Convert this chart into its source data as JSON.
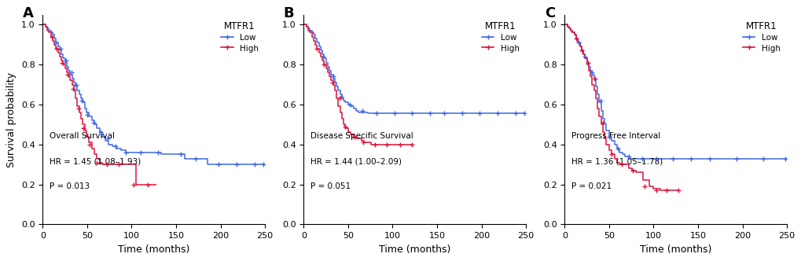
{
  "panels": [
    {
      "label": "A",
      "title": "Overall Survival",
      "hr_text": "HR = 1.45 (1.08–1.93)",
      "p_text": "P = 0.013",
      "blue_times": [
        0,
        3,
        5,
        7,
        9,
        11,
        13,
        15,
        17,
        19,
        21,
        23,
        25,
        27,
        29,
        31,
        33,
        35,
        37,
        39,
        41,
        43,
        45,
        47,
        49,
        52,
        55,
        58,
        61,
        64,
        67,
        70,
        74,
        78,
        83,
        88,
        93,
        98,
        103,
        110,
        118,
        125,
        133,
        142,
        150,
        160,
        170,
        185,
        200,
        220,
        240,
        250
      ],
      "blue_surv": [
        1.0,
        0.99,
        0.98,
        0.97,
        0.96,
        0.95,
        0.93,
        0.91,
        0.89,
        0.87,
        0.85,
        0.83,
        0.81,
        0.79,
        0.77,
        0.75,
        0.73,
        0.71,
        0.69,
        0.67,
        0.65,
        0.63,
        0.61,
        0.58,
        0.56,
        0.54,
        0.52,
        0.5,
        0.48,
        0.46,
        0.44,
        0.42,
        0.4,
        0.39,
        0.38,
        0.37,
        0.36,
        0.36,
        0.36,
        0.36,
        0.36,
        0.36,
        0.35,
        0.35,
        0.35,
        0.33,
        0.33,
        0.3,
        0.3,
        0.3,
        0.3,
        0.3
      ],
      "blue_censor_times": [
        15,
        20,
        26,
        32,
        38,
        44,
        50,
        57,
        65,
        73,
        82,
        93,
        110,
        130,
        155,
        172,
        198,
        218,
        238,
        248
      ],
      "blue_censor_surv": [
        0.91,
        0.88,
        0.82,
        0.76,
        0.7,
        0.62,
        0.55,
        0.51,
        0.46,
        0.43,
        0.39,
        0.36,
        0.36,
        0.36,
        0.35,
        0.33,
        0.3,
        0.3,
        0.3,
        0.3
      ],
      "red_times": [
        0,
        3,
        5,
        7,
        9,
        11,
        13,
        15,
        17,
        19,
        21,
        23,
        25,
        27,
        29,
        31,
        33,
        35,
        37,
        39,
        41,
        43,
        45,
        47,
        49,
        52,
        55,
        58,
        61,
        64,
        67,
        70,
        75,
        80,
        88,
        95,
        105,
        118,
        128
      ],
      "red_surv": [
        1.0,
        0.99,
        0.97,
        0.96,
        0.94,
        0.92,
        0.9,
        0.88,
        0.86,
        0.84,
        0.82,
        0.8,
        0.78,
        0.76,
        0.74,
        0.72,
        0.7,
        0.67,
        0.63,
        0.59,
        0.56,
        0.53,
        0.5,
        0.47,
        0.44,
        0.41,
        0.38,
        0.35,
        0.33,
        0.31,
        0.3,
        0.3,
        0.3,
        0.3,
        0.3,
        0.3,
        0.2,
        0.2,
        0.2
      ],
      "red_censor_times": [
        10,
        16,
        22,
        28,
        34,
        40,
        46,
        53,
        61,
        72,
        85,
        102,
        118
      ],
      "red_censor_surv": [
        0.94,
        0.88,
        0.81,
        0.75,
        0.68,
        0.58,
        0.48,
        0.4,
        0.31,
        0.3,
        0.3,
        0.2,
        0.2
      ],
      "xlim": [
        0,
        250
      ],
      "ylim": [
        0.0,
        1.05
      ],
      "yticks": [
        0.0,
        0.2,
        0.4,
        0.6,
        0.8,
        1.0
      ],
      "xticks": [
        0,
        50,
        100,
        150,
        200,
        250
      ]
    },
    {
      "label": "B",
      "title": "Disease Specific Survival",
      "hr_text": "HR = 1.44 (1.00–2.09)",
      "p_text": "P = 0.051",
      "blue_times": [
        0,
        3,
        5,
        7,
        9,
        11,
        13,
        15,
        17,
        19,
        21,
        23,
        25,
        27,
        29,
        31,
        33,
        35,
        37,
        39,
        41,
        43,
        45,
        47,
        50,
        53,
        56,
        59,
        62,
        65,
        68,
        72,
        76,
        80,
        88,
        95,
        110,
        125,
        140,
        160,
        185,
        210,
        235,
        250
      ],
      "blue_surv": [
        1.0,
        0.99,
        0.98,
        0.97,
        0.96,
        0.95,
        0.93,
        0.91,
        0.89,
        0.87,
        0.85,
        0.83,
        0.81,
        0.79,
        0.77,
        0.75,
        0.73,
        0.71,
        0.69,
        0.67,
        0.65,
        0.63,
        0.62,
        0.61,
        0.6,
        0.59,
        0.58,
        0.57,
        0.56,
        0.56,
        0.56,
        0.555,
        0.555,
        0.555,
        0.555,
        0.555,
        0.555,
        0.555,
        0.555,
        0.555,
        0.555,
        0.555,
        0.555,
        0.555
      ],
      "blue_censor_times": [
        22,
        33,
        42,
        52,
        66,
        82,
        102,
        122,
        142,
        158,
        178,
        198,
        218,
        238,
        248
      ],
      "blue_censor_surv": [
        0.84,
        0.74,
        0.64,
        0.6,
        0.57,
        0.555,
        0.555,
        0.555,
        0.555,
        0.555,
        0.555,
        0.555,
        0.555,
        0.555,
        0.555
      ],
      "red_times": [
        0,
        3,
        5,
        7,
        9,
        11,
        13,
        15,
        17,
        19,
        21,
        23,
        25,
        27,
        29,
        31,
        33,
        35,
        37,
        39,
        41,
        43,
        45,
        47,
        50,
        53,
        56,
        59,
        62,
        65,
        68,
        72,
        76,
        80,
        88,
        95,
        105,
        115,
        122
      ],
      "red_surv": [
        1.0,
        0.99,
        0.97,
        0.96,
        0.94,
        0.92,
        0.9,
        0.88,
        0.86,
        0.84,
        0.82,
        0.8,
        0.78,
        0.76,
        0.74,
        0.72,
        0.7,
        0.67,
        0.63,
        0.59,
        0.56,
        0.53,
        0.5,
        0.48,
        0.46,
        0.45,
        0.44,
        0.43,
        0.43,
        0.42,
        0.41,
        0.41,
        0.4,
        0.4,
        0.4,
        0.4,
        0.4,
        0.4,
        0.4
      ],
      "red_censor_times": [
        15,
        23,
        32,
        40,
        47,
        57,
        67,
        80,
        93,
        108,
        122
      ],
      "red_censor_surv": [
        0.88,
        0.8,
        0.71,
        0.63,
        0.49,
        0.44,
        0.41,
        0.4,
        0.4,
        0.4,
        0.4
      ],
      "xlim": [
        0,
        250
      ],
      "ylim": [
        0.0,
        1.05
      ],
      "yticks": [
        0.0,
        0.2,
        0.4,
        0.6,
        0.8,
        1.0
      ],
      "xticks": [
        0,
        50,
        100,
        150,
        200,
        250
      ]
    },
    {
      "label": "C",
      "title": "Progress Free Interval",
      "hr_text": "HR = 1.36 (1.05–1.78)",
      "p_text": "P = 0.021",
      "blue_times": [
        0,
        3,
        5,
        7,
        9,
        11,
        13,
        15,
        17,
        19,
        21,
        23,
        25,
        27,
        29,
        31,
        33,
        35,
        37,
        39,
        41,
        43,
        45,
        47,
        50,
        53,
        56,
        59,
        62,
        65,
        68,
        72,
        76,
        80,
        88,
        95,
        105,
        120,
        135,
        155,
        180,
        210,
        240,
        250
      ],
      "blue_surv": [
        1.0,
        0.99,
        0.98,
        0.97,
        0.96,
        0.95,
        0.93,
        0.91,
        0.89,
        0.87,
        0.85,
        0.83,
        0.81,
        0.79,
        0.77,
        0.75,
        0.72,
        0.69,
        0.65,
        0.61,
        0.57,
        0.53,
        0.5,
        0.47,
        0.44,
        0.42,
        0.4,
        0.38,
        0.36,
        0.35,
        0.34,
        0.33,
        0.33,
        0.33,
        0.33,
        0.33,
        0.33,
        0.33,
        0.33,
        0.33,
        0.33,
        0.33,
        0.33,
        0.33
      ],
      "blue_censor_times": [
        16,
        23,
        31,
        40,
        50,
        60,
        72,
        87,
        103,
        122,
        142,
        163,
        193,
        223,
        248
      ],
      "blue_censor_surv": [
        0.91,
        0.84,
        0.76,
        0.62,
        0.44,
        0.38,
        0.34,
        0.33,
        0.33,
        0.33,
        0.33,
        0.33,
        0.33,
        0.33,
        0.33
      ],
      "red_times": [
        0,
        3,
        5,
        7,
        9,
        11,
        13,
        15,
        17,
        19,
        21,
        23,
        25,
        27,
        29,
        31,
        33,
        35,
        37,
        39,
        41,
        43,
        45,
        47,
        50,
        53,
        56,
        59,
        62,
        65,
        68,
        72,
        76,
        80,
        88,
        95,
        100,
        108,
        115,
        122,
        128
      ],
      "red_surv": [
        1.0,
        0.99,
        0.98,
        0.97,
        0.96,
        0.95,
        0.93,
        0.91,
        0.89,
        0.87,
        0.85,
        0.83,
        0.8,
        0.77,
        0.74,
        0.7,
        0.67,
        0.63,
        0.58,
        0.54,
        0.5,
        0.46,
        0.43,
        0.4,
        0.37,
        0.35,
        0.33,
        0.31,
        0.3,
        0.3,
        0.3,
        0.28,
        0.27,
        0.26,
        0.22,
        0.19,
        0.18,
        0.17,
        0.17,
        0.17,
        0.17
      ],
      "red_censor_times": [
        13,
        19,
        26,
        34,
        43,
        53,
        64,
        77,
        90,
        103,
        115,
        128
      ],
      "red_censor_surv": [
        0.93,
        0.87,
        0.81,
        0.73,
        0.51,
        0.35,
        0.3,
        0.27,
        0.19,
        0.17,
        0.17,
        0.17
      ],
      "xlim": [
        0,
        250
      ],
      "ylim": [
        0.0,
        1.05
      ],
      "yticks": [
        0.0,
        0.2,
        0.4,
        0.6,
        0.8,
        1.0
      ],
      "xticks": [
        0,
        50,
        100,
        150,
        200,
        250
      ]
    }
  ],
  "blue_color": "#4169E1",
  "red_color": "#DC143C",
  "xlabel": "Time (months)",
  "ylabel": "Survival probability",
  "legend_title": "MTFR1",
  "legend_low": "Low",
  "legend_high": "High",
  "figsize": [
    10.2,
    3.32
  ],
  "dpi": 100
}
